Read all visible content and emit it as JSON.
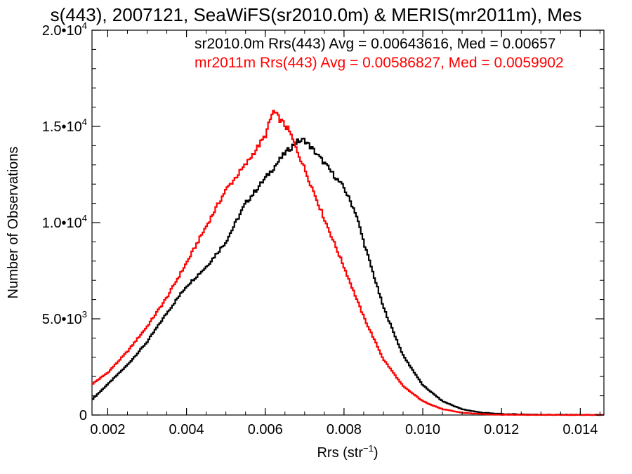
{
  "chart_data": {
    "type": "line",
    "title": "s(443), 2007121, SeaWiFS(sr2010.0m) & MERIS(mr2011m), Mes",
    "xlabel": "Rrs (str",
    "xlabel_sup": "−1",
    "xlabel_end": ")",
    "ylabel": "Number of Observations",
    "xlim": [
      0.0016,
      0.0146
    ],
    "ylim": [
      0,
      20000
    ],
    "x_ticks": [
      "0.002",
      "0.004",
      "0.006",
      "0.008",
      "0.010",
      "0.012",
      "0.014"
    ],
    "x_tick_values": [
      0.002,
      0.004,
      0.006,
      0.008,
      0.01,
      0.012,
      0.014
    ],
    "y_ticks": [
      {
        "value": 0,
        "mant": "0",
        "exp": ""
      },
      {
        "value": 5000,
        "mant": "5.0•10",
        "exp": "3"
      },
      {
        "value": 10000,
        "mant": "1.0•10",
        "exp": "4"
      },
      {
        "value": 15000,
        "mant": "1.5•10",
        "exp": "4"
      },
      {
        "value": 20000,
        "mant": "2.0•10",
        "exp": "4"
      }
    ],
    "annotations": [
      "sr2010.0m Rrs(443) Avg = 0.00643616, Med = 0.00657",
      "mr2011m Rrs(443) Avg = 0.00586827, Med = 0.0059902"
    ],
    "series": [
      {
        "color": "#000000",
        "x": [
          0.0016,
          0.002,
          0.0025,
          0.003,
          0.0035,
          0.004,
          0.0045,
          0.005,
          0.0055,
          0.006,
          0.0065,
          0.0068,
          0.007,
          0.0075,
          0.008,
          0.0083,
          0.0085,
          0.009,
          0.0095,
          0.01,
          0.0105,
          0.011,
          0.0115,
          0.012,
          0.013,
          0.014,
          0.0146
        ],
        "values": [
          800,
          1600,
          2600,
          3800,
          5300,
          6700,
          7700,
          9000,
          11000,
          12300,
          13600,
          14200,
          14300,
          13100,
          11800,
          10500,
          9000,
          5600,
          3100,
          1550,
          720,
          300,
          120,
          50,
          15,
          5,
          3
        ]
      },
      {
        "color": "#ff0000",
        "x": [
          0.0016,
          0.002,
          0.0025,
          0.003,
          0.0035,
          0.004,
          0.0045,
          0.005,
          0.0055,
          0.006,
          0.0062,
          0.0064,
          0.0066,
          0.007,
          0.0075,
          0.008,
          0.0085,
          0.009,
          0.0095,
          0.01,
          0.0105,
          0.011,
          0.0115,
          0.012,
          0.013,
          0.014,
          0.0146
        ],
        "values": [
          1600,
          2200,
          3300,
          4600,
          6100,
          7900,
          9800,
          11700,
          13000,
          14500,
          15800,
          15300,
          14800,
          12800,
          10200,
          7700,
          5100,
          2900,
          1500,
          720,
          300,
          120,
          50,
          20,
          5,
          2,
          1
        ]
      }
    ]
  }
}
